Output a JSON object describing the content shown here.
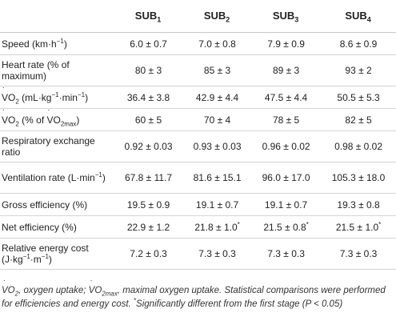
{
  "headers": {
    "col1": "",
    "sub1_base": "SUB",
    "sub1_idx": "1",
    "sub2_base": "SUB",
    "sub2_idx": "2",
    "sub3_base": "SUB",
    "sub3_idx": "3",
    "sub4_base": "SUB",
    "sub4_idx": "4"
  },
  "rows": [
    {
      "label_a": "Speed (km·h",
      "label_sup": "−1",
      "label_b": ")",
      "values": [
        "6.0 ± 0.7",
        "7.0 ± 0.8",
        "7.9 ± 0.9",
        "8.6 ± 0.9"
      ]
    },
    {
      "label": "Heart rate (% of maximum)",
      "values": [
        "80 ± 3",
        "85 ± 3",
        "89 ± 3",
        "93 ± 2"
      ]
    },
    {
      "label_v": "V",
      "label_o": "O",
      "label_sub": "2",
      "label_a": " (mL·kg",
      "label_sup1": "−1",
      "label_b": "·min",
      "label_sup2": "−1",
      "label_c": ")",
      "values": [
        "36.4 ± 3.8",
        "42.9 ± 4.4",
        "47.5 ± 4.4",
        "50.5 ± 5.3"
      ]
    },
    {
      "label_v": "V",
      "label_o": "O",
      "label_sub": "2",
      "label_a": " (% of ",
      "label_v2": "V",
      "label_o2": "O",
      "label_sub2": "2max",
      "label_b": ")",
      "values": [
        "60 ± 5",
        "70 ± 4",
        "78 ± 5",
        "82 ± 5"
      ]
    },
    {
      "label": "Respiratory exchange ratio",
      "values": [
        "0.92 ± 0.03",
        "0.93 ± 0.03",
        "0.96 ± 0.02",
        "0.98 ± 0.02"
      ]
    },
    {
      "label_a": "Ventilation rate (L·min",
      "label_sup": "−1",
      "label_b": ")",
      "values": [
        "67.8 ± 11.7",
        "81.6 ± 15.1",
        "96.0 ± 17.0",
        "105.3 ± 18.0"
      ]
    },
    {
      "label": "Gross efficiency (%)",
      "values": [
        "19.5 ± 0.9",
        "19.1 ± 0.7",
        "19.1 ± 0.7",
        "19.3 ± 0.8"
      ]
    },
    {
      "label": "Net efficiency (%)",
      "values": [
        "22.9 ± 1.2",
        "21.8 ± 1.0",
        "21.5 ± 0.8",
        "21.5 ± 1.0"
      ],
      "marks": [
        "",
        "*",
        "*",
        "*"
      ]
    },
    {
      "label_a": "Relative energy cost (J·kg",
      "label_sup1": "−1",
      "label_b": "·m",
      "label_sup2": "−1",
      "label_c": ")",
      "values": [
        "7.2 ± 0.3",
        "7.3 ± 0.3",
        "7.3 ± 0.3",
        "7.3 ± 0.3"
      ]
    }
  ],
  "footnote": {
    "v1": "V",
    "o1": "O",
    "s1": "2",
    "t1": ", oxygen uptake; ",
    "v2": "V",
    "o2": "O",
    "s2": "2max",
    "t2": ", maximal oxygen uptake. Statistical comparisons were performed for efficiencies and energy cost. ",
    "star": "*",
    "t3": "Significantly different from the first stage (P < 0.05)"
  }
}
